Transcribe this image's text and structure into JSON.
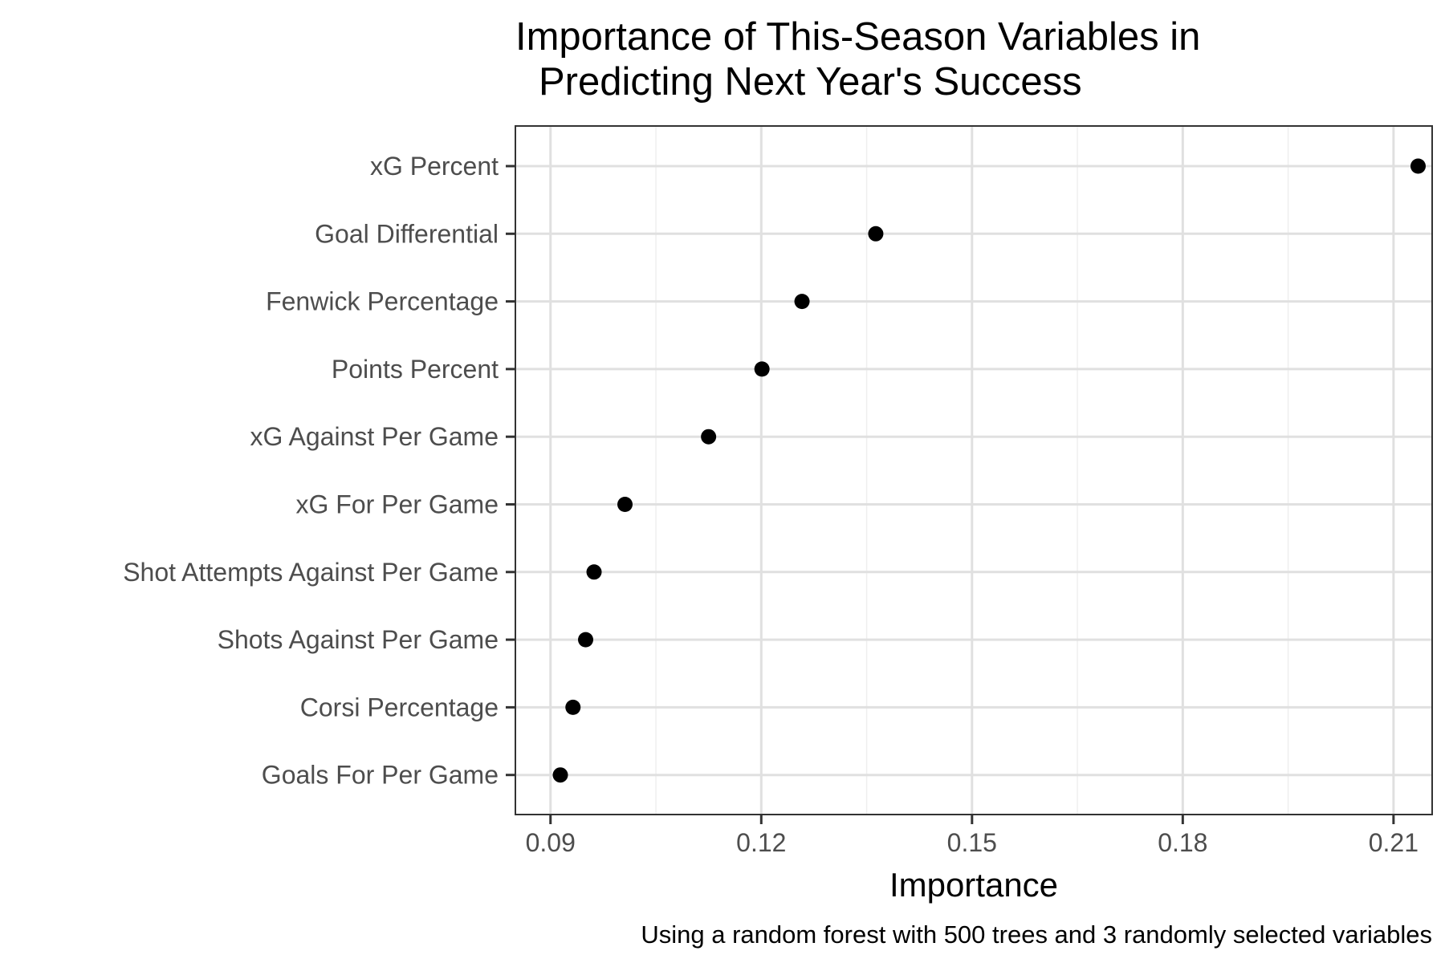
{
  "chart_data": {
    "type": "scatter",
    "title_lines": [
      "Importance of This-Season Variables in",
      "Predicting Next Year's Success"
    ],
    "xlabel": "Importance",
    "ylabel": "",
    "caption": "Using a random forest with 500 trees and 3 randomly selected variables",
    "xlim": [
      0.085,
      0.2155
    ],
    "x_ticks": [
      0.09,
      0.12,
      0.15,
      0.18,
      0.21
    ],
    "x_tick_labels": [
      "0.09",
      "0.12",
      "0.15",
      "0.18",
      "0.21"
    ],
    "grid": true,
    "legend": "none",
    "categories": [
      "xG Percent",
      "Goal Differential",
      "Fenwick Percentage",
      "Points Percent",
      "xG Against Per Game",
      "xG For Per Game",
      "Shot Attempts Against Per Game",
      "Shots Against Per Game",
      "Corsi Percentage",
      "Goals For Per Game"
    ],
    "values": [
      0.2135,
      0.1363,
      0.1258,
      0.1201,
      0.1125,
      0.1006,
      0.0962,
      0.095,
      0.0932,
      0.0914
    ],
    "colors": {
      "point": "#000000",
      "panel_border": "#333333",
      "grid_major": "#e0e0e0",
      "grid_minor": "#efefef",
      "tick": "#333333"
    }
  }
}
